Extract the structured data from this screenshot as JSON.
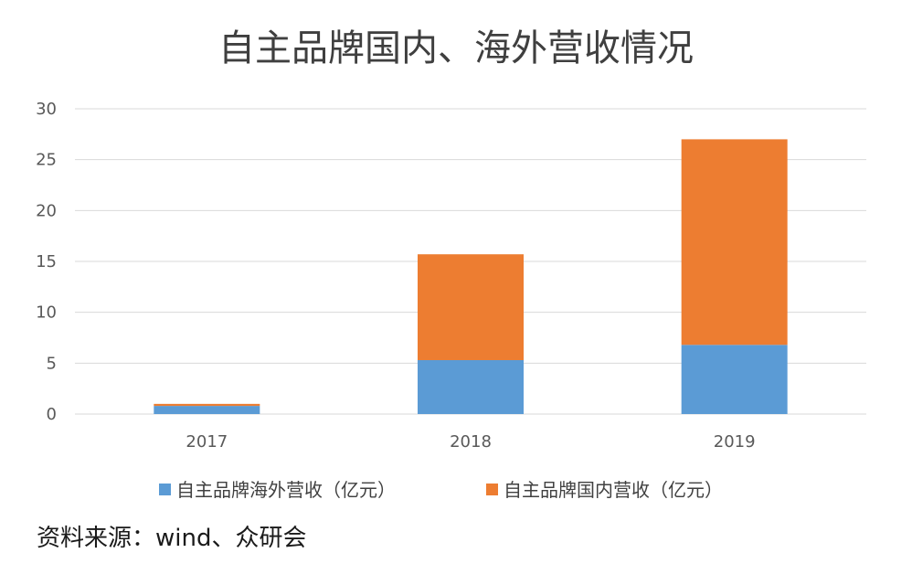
{
  "chart_data": {
    "type": "bar",
    "stacked": true,
    "title": "自主品牌国内、海外营收情况",
    "xlabel": "",
    "ylabel": "",
    "categories": [
      "2017",
      "2018",
      "2019"
    ],
    "series": [
      {
        "name": "自主品牌海外营收（亿元）",
        "values": [
          0.8,
          5.3,
          6.8
        ],
        "color": "#5b9bd5"
      },
      {
        "name": "自主品牌国内营收（亿元）",
        "values": [
          0.2,
          10.4,
          20.2
        ],
        "color": "#ed7d31"
      }
    ],
    "ylim": [
      0,
      30
    ],
    "yticks": [
      0,
      5,
      10,
      15,
      20,
      25,
      30
    ],
    "grid": true,
    "legend_position": "bottom"
  },
  "source_note": "资料来源：wind、众研会"
}
